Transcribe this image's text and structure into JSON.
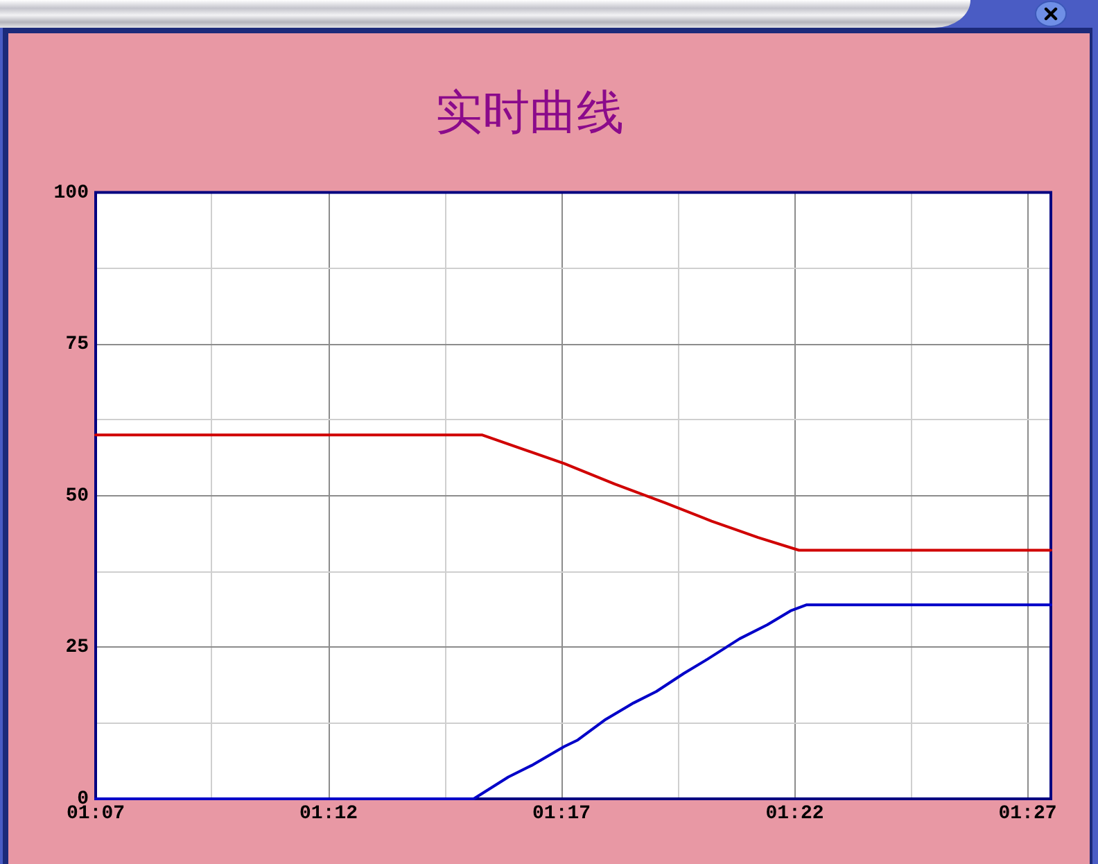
{
  "chart_data": {
    "type": "line",
    "title": "实时曲线",
    "xlim": [
      1.1167,
      1.4583
    ],
    "xticks": [
      {
        "value": 1.1167,
        "label": "01:07"
      },
      {
        "value": 1.1583,
        "label": null
      },
      {
        "value": 1.2,
        "label": "01:12"
      },
      {
        "value": 1.2417,
        "label": null
      },
      {
        "value": 1.2833,
        "label": "01:17"
      },
      {
        "value": 1.325,
        "label": null
      },
      {
        "value": 1.3667,
        "label": "01:22"
      },
      {
        "value": 1.4083,
        "label": null
      },
      {
        "value": 1.45,
        "label": "01:27"
      }
    ],
    "ylim": [
      0,
      100
    ],
    "yticks": [
      0,
      {
        "value": 12.5,
        "label": null
      },
      25,
      {
        "value": 37.5,
        "label": null
      },
      50,
      {
        "value": 62.5,
        "label": null
      },
      75,
      {
        "value": 87.5,
        "label": null
      },
      100
    ],
    "grid": true,
    "series": [
      {
        "color": "#d00000",
        "x": [
          1.1167,
          1.255,
          1.2842,
          1.3024,
          1.3205,
          1.337,
          1.3536,
          1.3682,
          1.4583
        ],
        "values": [
          60,
          60,
          55.3,
          51.9,
          48.8,
          45.8,
          43.1,
          41,
          41
        ]
      },
      {
        "color": "#0000c8",
        "x": [
          1.1167,
          1.2519,
          1.2643,
          1.2726,
          1.2842,
          1.2891,
          1.2991,
          1.309,
          1.3172,
          1.3271,
          1.3354,
          1.347,
          1.3569,
          1.3652,
          1.371,
          1.4583
        ],
        "values": [
          0,
          0,
          3.6,
          5.5,
          8.6,
          9.7,
          13.1,
          15.8,
          17.7,
          20.7,
          23.0,
          26.4,
          28.7,
          31.0,
          32,
          32
        ]
      }
    ]
  }
}
